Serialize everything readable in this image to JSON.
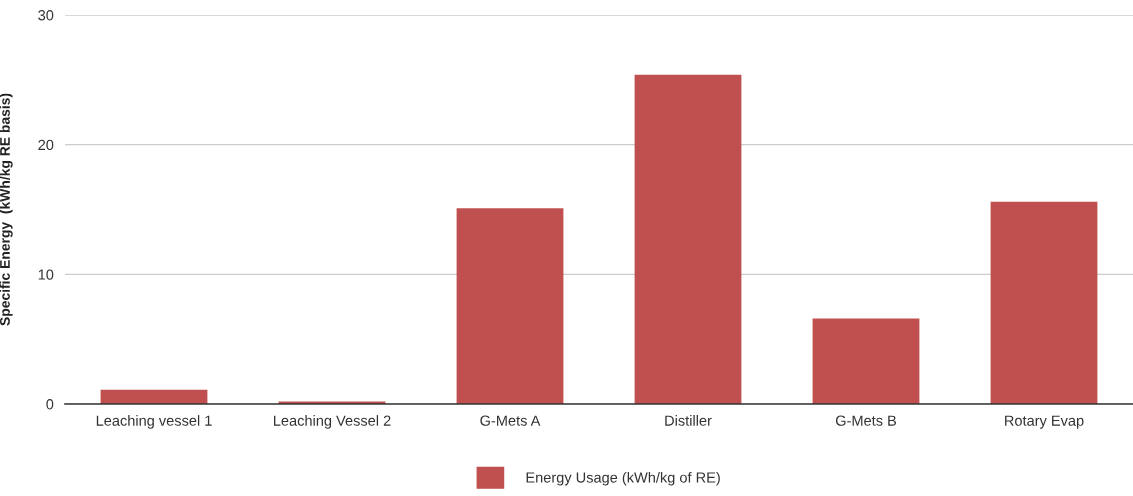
{
  "chart_data": {
    "type": "bar",
    "ylabel": "Specific Energy  (kWh/kg RE basis)",
    "categories": [
      "Leaching vessel 1",
      "Leaching Vessel 2",
      "G-Mets A",
      "Distiller",
      "G-Mets B",
      "Rotary Evap"
    ],
    "series": [
      {
        "name": "Energy Usage (kWh/kg of RE)",
        "color": "#c0504f",
        "values": [
          1.1,
          0.2,
          15.1,
          25.4,
          6.6,
          15.6
        ]
      }
    ],
    "ylim": [
      0,
      30
    ],
    "yticks": [
      0,
      10,
      20,
      30
    ],
    "grid": "y",
    "legend": "bottom"
  }
}
